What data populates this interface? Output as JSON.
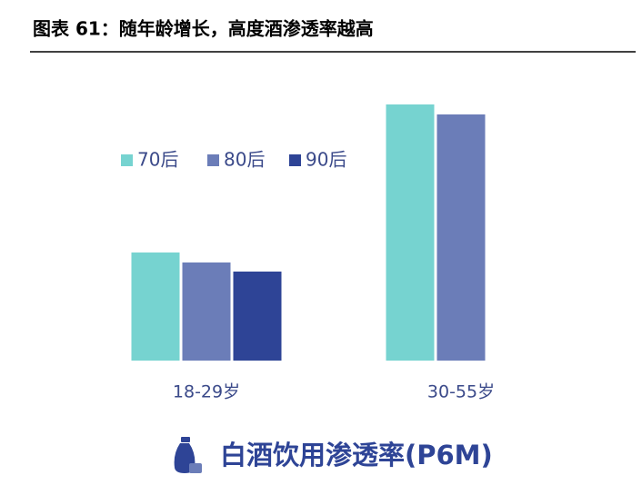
{
  "chart_data": {
    "type": "bar",
    "title": "图表 61：随年龄增长，高度酒渗透率越高",
    "subtitle": "白酒饮用渗透率(P6M)",
    "categories": [
      "18-29岁",
      "30-55岁"
    ],
    "series": [
      {
        "name": "70后",
        "color": "#76d3d0",
        "values": [
          119,
          282
        ]
      },
      {
        "name": "80后",
        "color": "#6b7db8",
        "values": [
          108,
          271
        ]
      },
      {
        "name": "90后",
        "color": "#2e4496",
        "values": [
          98,
          null
        ]
      }
    ],
    "ylim": [
      0,
      300
    ]
  }
}
